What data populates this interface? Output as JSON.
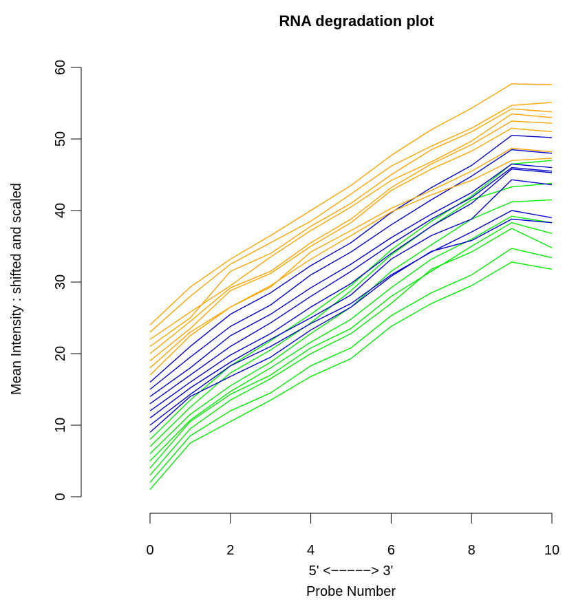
{
  "chart_data": {
    "type": "line",
    "title": "RNA degradation plot",
    "xlabel_line1": "5' <−−−−−> 3'",
    "xlabel_line2": "Probe Number",
    "ylabel": "Mean Intensity : shifted and scaled",
    "xlim": [
      0,
      10
    ],
    "ylim": [
      0,
      60
    ],
    "x": [
      0,
      1,
      2,
      3,
      4,
      5,
      6,
      7,
      8,
      9,
      10
    ],
    "x_ticks": [
      0,
      2,
      4,
      6,
      8,
      10
    ],
    "y_ticks": [
      0,
      10,
      20,
      30,
      40,
      50,
      60
    ],
    "grid": false,
    "colors": {
      "green": "#00ee00",
      "blue": "#0000cc",
      "orange": "#ffa500"
    },
    "series": [
      {
        "color": "green",
        "values": [
          1,
          7.5,
          10.5,
          13.5,
          16.8,
          19.3,
          23.8,
          27,
          29.5,
          32.8,
          31.8
        ]
      },
      {
        "color": "green",
        "values": [
          2,
          8.5,
          12,
          14.5,
          18.3,
          20.8,
          25.3,
          28.5,
          31,
          34.7,
          33.4
        ]
      },
      {
        "color": "green",
        "values": [
          3,
          9.5,
          13.5,
          16.5,
          20,
          22.8,
          27,
          31.8,
          34.2,
          37.5,
          34.8
        ]
      },
      {
        "color": "green",
        "values": [
          4,
          10.5,
          14.3,
          17,
          20.8,
          23.5,
          28,
          31.5,
          35,
          38.3,
          36.8
        ]
      },
      {
        "color": "green",
        "values": [
          5,
          10.7,
          14.7,
          18,
          21.6,
          24.8,
          29.2,
          33.2,
          36,
          39.2,
          38.3
        ]
      },
      {
        "color": "green",
        "values": [
          6,
          11.5,
          15.5,
          18.8,
          22.8,
          26.5,
          31.5,
          35.2,
          38.8,
          41.2,
          41.5
        ]
      },
      {
        "color": "green",
        "values": [
          7,
          12.5,
          17.3,
          20.5,
          24.3,
          28.8,
          33.8,
          37.8,
          41.5,
          43.3,
          43.8
        ]
      },
      {
        "color": "green",
        "values": [
          8,
          13.5,
          18.3,
          21.8,
          25.5,
          29.5,
          34.5,
          38.5,
          42,
          46.5,
          47
        ]
      },
      {
        "color": "blue",
        "values": [
          9,
          14,
          16.8,
          19.5,
          23.3,
          26.5,
          30.8,
          34.3,
          35.8,
          38.8,
          38.3
        ]
      },
      {
        "color": "blue",
        "values": [
          10,
          14.3,
          18.3,
          21,
          24.2,
          27,
          31,
          34.2,
          37,
          40,
          39
        ]
      },
      {
        "color": "blue",
        "values": [
          11,
          15.2,
          18.8,
          22,
          25,
          28.2,
          33.2,
          36.5,
          38.8,
          44.3,
          43.6
        ]
      },
      {
        "color": "blue",
        "values": [
          12,
          16,
          19.8,
          22.8,
          26.5,
          29.8,
          34,
          37.8,
          41,
          45.8,
          45.3
        ]
      },
      {
        "color": "blue",
        "values": [
          13,
          17,
          21,
          24.3,
          28,
          31.5,
          35.3,
          38.8,
          41.8,
          46,
          45.5
        ]
      },
      {
        "color": "blue",
        "values": [
          14,
          18,
          22.5,
          25.5,
          29.2,
          32.5,
          36.2,
          39.5,
          42.5,
          46.5,
          46
        ]
      },
      {
        "color": "blue",
        "values": [
          15,
          19.5,
          23.8,
          26.8,
          31,
          34.2,
          38,
          41.5,
          44.8,
          48.5,
          48
        ]
      },
      {
        "color": "blue",
        "values": [
          16,
          21,
          25.5,
          28.5,
          32.3,
          35.5,
          39.7,
          43.2,
          46.3,
          50.5,
          50.2
        ]
      },
      {
        "color": "orange",
        "values": [
          17,
          22.5,
          26.5,
          29.5,
          33.2,
          36.5,
          39.8,
          42.2,
          44.2,
          47,
          47.3
        ]
      },
      {
        "color": "orange",
        "values": [
          18,
          23,
          26.5,
          29.3,
          34.2,
          37.2,
          40.3,
          42.8,
          45.5,
          48.7,
          48.2
        ]
      },
      {
        "color": "orange",
        "values": [
          19,
          23.5,
          28.8,
          31.2,
          35,
          38.3,
          42.8,
          45.8,
          48.3,
          51.5,
          51
        ]
      },
      {
        "color": "orange",
        "values": [
          20,
          24.5,
          29.2,
          31.5,
          35.5,
          38.8,
          43.2,
          46.5,
          49.2,
          52.5,
          52.2
        ]
      },
      {
        "color": "orange",
        "values": [
          21,
          25,
          31.5,
          34,
          37.8,
          41,
          45,
          48.5,
          51,
          54.2,
          53.8
        ]
      },
      {
        "color": "orange",
        "values": [
          22,
          25.8,
          29.5,
          33.5,
          37.2,
          40.5,
          44.2,
          46.8,
          49.7,
          53.5,
          53
        ]
      },
      {
        "color": "orange",
        "values": [
          23,
          28,
          32.5,
          35.5,
          38.5,
          42.3,
          46.2,
          49,
          51.5,
          54.7,
          55.1
        ]
      },
      {
        "color": "orange",
        "values": [
          24,
          29.3,
          33.2,
          36.5,
          40,
          43.5,
          47.7,
          51.3,
          54.3,
          57.7,
          57.6
        ]
      }
    ]
  }
}
